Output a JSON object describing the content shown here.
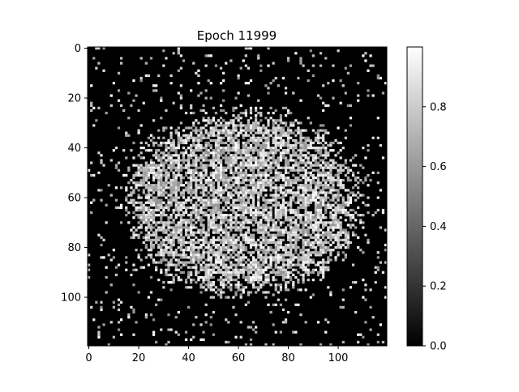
{
  "chart_data": {
    "type": "heatmap",
    "title": "Epoch 11999",
    "xlabel": "",
    "ylabel": "",
    "x_range": [
      0,
      119
    ],
    "y_range": [
      0,
      119
    ],
    "grid_size": [
      120,
      120
    ],
    "y_axis_inverted": true,
    "x_ticks": [
      "0",
      "20",
      "40",
      "60",
      "80",
      "100"
    ],
    "x_tick_values": [
      0,
      20,
      40,
      60,
      80,
      100
    ],
    "y_ticks": [
      "0",
      "20",
      "40",
      "60",
      "80",
      "100"
    ],
    "y_tick_values": [
      0,
      20,
      40,
      60,
      80,
      100
    ],
    "colormap": "gray",
    "value_range": [
      0.0,
      1.0
    ],
    "colorbar_ticks": [
      "0.0",
      "0.2",
      "0.4",
      "0.6",
      "0.8"
    ],
    "colorbar_tick_values": [
      0.0,
      0.2,
      0.4,
      0.6,
      0.8
    ],
    "content": {
      "shape": "noisy bright ellipse",
      "center": [
        62,
        62
      ],
      "radius_x": 45,
      "radius_y": 35,
      "inside_fill_fraction": 0.72,
      "outside_speckle_fraction": 0.06
    },
    "grid": false,
    "legend": "none"
  }
}
